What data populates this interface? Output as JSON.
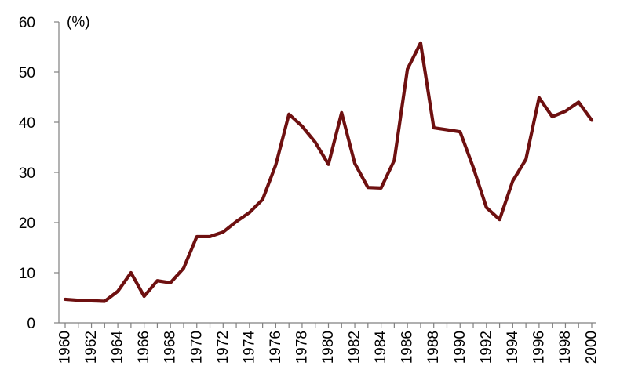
{
  "chart_data": {
    "type": "line",
    "title": "",
    "xlabel": "",
    "ylabel": "(%)",
    "ylim": [
      0,
      60
    ],
    "yticks": [
      0,
      10,
      20,
      30,
      40,
      50,
      60
    ],
    "xlim": [
      1960,
      2000
    ],
    "xticks": [
      1960,
      1962,
      1964,
      1966,
      1968,
      1970,
      1972,
      1974,
      1976,
      1978,
      1980,
      1982,
      1984,
      1986,
      1988,
      1990,
      1992,
      1994,
      1996,
      1998,
      2000
    ],
    "grid": false,
    "legend": "none",
    "line_color": "#6e1010",
    "x": [
      1960,
      1961,
      1962,
      1963,
      1964,
      1965,
      1966,
      1967,
      1968,
      1969,
      1970,
      1971,
      1972,
      1973,
      1974,
      1975,
      1976,
      1977,
      1978,
      1979,
      1980,
      1981,
      1982,
      1983,
      1984,
      1985,
      1986,
      1987,
      1988,
      1989,
      1990,
      1991,
      1992,
      1993,
      1994,
      1995,
      1996,
      1997,
      1998,
      1999,
      2000
    ],
    "series": [
      {
        "values": [
          4.7,
          4.5,
          4.4,
          4.3,
          6.3,
          10.0,
          5.3,
          8.4,
          8.0,
          10.9,
          17.2,
          17.2,
          18.1,
          20.2,
          22.0,
          24.6,
          31.5,
          41.6,
          39.2,
          36.0,
          31.6,
          41.9,
          31.8,
          27.0,
          26.9,
          32.4,
          50.6,
          55.8,
          38.9,
          38.5,
          38.1,
          31.0,
          23.0,
          20.6,
          28.3,
          32.6,
          44.9,
          41.1,
          42.2,
          44.0,
          40.4
        ]
      }
    ]
  }
}
